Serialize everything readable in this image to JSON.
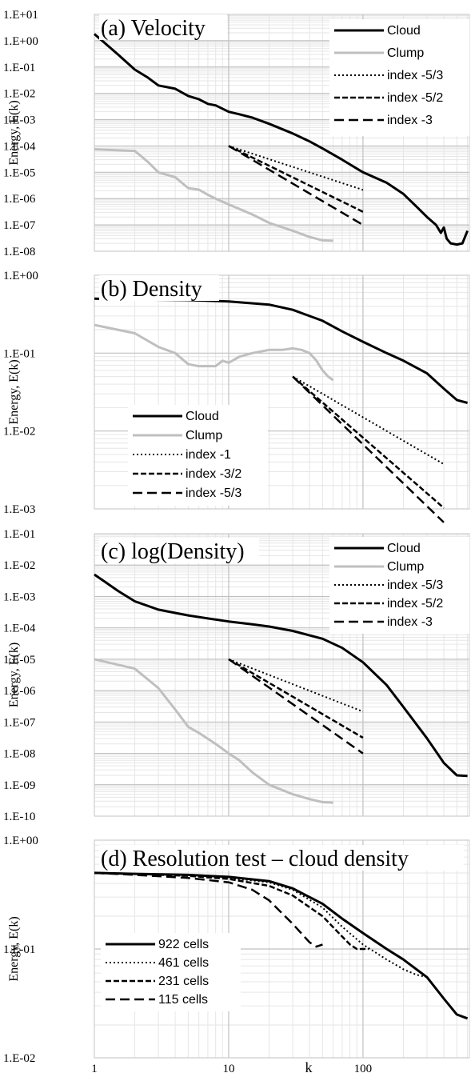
{
  "x_axis": {
    "label": "k",
    "ticks": [
      "1",
      "10",
      "100"
    ],
    "xlim": [
      1,
      620
    ],
    "scale": "log"
  },
  "colors": {
    "cloud": "#000000",
    "clump": "#bfbfbf",
    "grid_major": "#c0c0c0",
    "grid_minor": "#e6e6e6"
  },
  "chart_data": [
    {
      "type": "line",
      "title": "(a) Velocity",
      "ylabel": "Energy, E(k)",
      "yscale": "log",
      "ylim": [
        1e-08,
        10
      ],
      "yticks": [
        "1.E+01",
        "1.E+00",
        "1.E-01",
        "1.E-02",
        "1.E-03",
        "1.E-04",
        "1.E-05",
        "1.E-06",
        "1.E-07",
        "1.E-08"
      ],
      "legend_position": "top-right",
      "series": [
        {
          "name": "Cloud",
          "style": "solid-black",
          "x": [
            1,
            1.5,
            2,
            2.5,
            3,
            4,
            5,
            6,
            7,
            8,
            10,
            12,
            15,
            20,
            30,
            40,
            50,
            70,
            100,
            150,
            200,
            250,
            300,
            350,
            380,
            400,
            420,
            450,
            500,
            550,
            600
          ],
          "y": [
            1.8,
            0.3,
            0.08,
            0.04,
            0.02,
            0.015,
            0.008,
            0.006,
            0.004,
            0.0035,
            0.002,
            0.0016,
            0.0012,
            0.0007,
            0.0003,
            0.00015,
            8e-05,
            3e-05,
            1e-05,
            4e-06,
            1.5e-06,
            5e-07,
            2e-07,
            1e-07,
            5e-08,
            8e-08,
            3e-08,
            2e-08,
            1.8e-08,
            2e-08,
            6e-08
          ]
        },
        {
          "name": "Clump",
          "style": "solid-gray",
          "x": [
            1,
            2,
            2.5,
            3,
            4,
            5,
            6,
            7,
            8,
            10,
            15,
            20,
            30,
            40,
            50,
            60
          ],
          "y": [
            7.5e-05,
            6.5e-05,
            2.5e-05,
            1e-05,
            6.5e-06,
            2.5e-06,
            2.2e-06,
            1.4e-06,
            1e-06,
            6e-07,
            2.5e-07,
            1.2e-07,
            6e-08,
            3.5e-08,
            2.6e-08,
            2.5e-08
          ]
        },
        {
          "name": "index -5/3",
          "style": "dotted",
          "x": [
            10,
            100
          ],
          "y": [
            0.0001,
            2.15e-06
          ]
        },
        {
          "name": "index -5/2",
          "style": "dashed",
          "x": [
            10,
            100
          ],
          "y": [
            0.0001,
            3.16e-07
          ]
        },
        {
          "name": "index -3",
          "style": "longdash",
          "x": [
            10,
            100
          ],
          "y": [
            0.0001,
            1e-07
          ]
        }
      ]
    },
    {
      "type": "line",
      "title": "(b) Density",
      "ylabel": "Energy, E(k)",
      "yscale": "log",
      "ylim": [
        0.001,
        1
      ],
      "yticks": [
        "1.E+00",
        "1.E-01",
        "1.E-02",
        "1.E-03"
      ],
      "legend_position": "bottom-left",
      "series": [
        {
          "name": "Cloud",
          "style": "solid-black",
          "x": [
            1,
            2,
            5,
            10,
            20,
            30,
            50,
            70,
            100,
            150,
            200,
            300,
            400,
            500,
            600
          ],
          "y": [
            0.5,
            0.49,
            0.48,
            0.46,
            0.42,
            0.36,
            0.26,
            0.19,
            0.14,
            0.1,
            0.08,
            0.055,
            0.035,
            0.025,
            0.023
          ]
        },
        {
          "name": "Clump",
          "style": "solid-gray",
          "x": [
            1,
            2,
            3,
            4,
            5,
            6,
            8,
            9,
            10,
            12,
            15,
            20,
            25,
            30,
            35,
            40,
            45,
            50,
            55,
            60
          ],
          "y": [
            0.23,
            0.18,
            0.12,
            0.1,
            0.072,
            0.068,
            0.068,
            0.08,
            0.075,
            0.09,
            0.1,
            0.11,
            0.11,
            0.115,
            0.11,
            0.1,
            0.08,
            0.06,
            0.05,
            0.045
          ]
        },
        {
          "name": "index -1",
          "style": "dotted",
          "x": [
            30,
            400
          ],
          "y": [
            0.05,
            0.00375
          ]
        },
        {
          "name": "index -3/2",
          "style": "dashed",
          "x": [
            30,
            400
          ],
          "y": [
            0.05,
            0.00103
          ]
        },
        {
          "name": "index -5/3",
          "style": "longdash",
          "x": [
            30,
            400
          ],
          "y": [
            0.05,
            0.00067
          ]
        }
      ]
    },
    {
      "type": "line",
      "title": "(c) log(Density)",
      "ylabel": "Energy, E(k)",
      "yscale": "log",
      "ylim": [
        1e-10,
        0.1
      ],
      "yticks": [
        "1.E-01",
        "1.E-02",
        "1.E-03",
        "1.E-04",
        "1.E-05",
        "1.E-06",
        "1.E-07",
        "1.E-08",
        "1.E-09",
        "1.E-10"
      ],
      "legend_position": "top-right",
      "series": [
        {
          "name": "Cloud",
          "style": "solid-black",
          "x": [
            1,
            1.5,
            2,
            3,
            4,
            5,
            7,
            10,
            15,
            20,
            30,
            50,
            70,
            100,
            150,
            200,
            300,
            400,
            500,
            600
          ],
          "y": [
            0.005,
            0.0015,
            0.0007,
            0.00038,
            0.0003,
            0.00025,
            0.0002,
            0.00016,
            0.00013,
            0.00011,
            8e-05,
            4.5e-05,
            2.3e-05,
            8e-06,
            1.5e-06,
            3e-07,
            3e-08,
            5e-09,
            2e-09,
            1.9e-09
          ]
        },
        {
          "name": "Clump",
          "style": "solid-gray",
          "x": [
            1,
            2,
            3,
            4,
            5,
            6,
            8,
            10,
            12,
            15,
            20,
            30,
            40,
            50,
            60
          ],
          "y": [
            1e-05,
            5e-06,
            1.2e-06,
            2.5e-07,
            7e-08,
            4.5e-08,
            2e-08,
            1e-08,
            6e-09,
            2.5e-09,
            1e-09,
            5e-10,
            3.5e-10,
            2.8e-10,
            2.7e-10
          ]
        },
        {
          "name": "index -5/3",
          "style": "dotted",
          "x": [
            10,
            100
          ],
          "y": [
            1e-05,
            2.15e-07
          ]
        },
        {
          "name": "index -5/2",
          "style": "dashed",
          "x": [
            10,
            100
          ],
          "y": [
            1e-05,
            3.16e-08
          ]
        },
        {
          "name": "index -3",
          "style": "longdash",
          "x": [
            10,
            100
          ],
          "y": [
            1e-05,
            1e-08
          ]
        }
      ]
    },
    {
      "type": "line",
      "title": "(d) Resolution test – cloud density",
      "ylabel": "Energy, E(k)",
      "yscale": "log",
      "ylim": [
        0.01,
        1
      ],
      "yticks": [
        "1.E+00",
        "1.E-01",
        "1.E-02"
      ],
      "legend_position": "bottom-left",
      "series": [
        {
          "name": "922 cells",
          "style": "solid-black",
          "x": [
            1,
            2,
            5,
            10,
            20,
            30,
            50,
            70,
            100,
            150,
            200,
            300,
            400,
            500,
            600
          ],
          "y": [
            0.5,
            0.49,
            0.48,
            0.46,
            0.42,
            0.36,
            0.26,
            0.19,
            0.14,
            0.1,
            0.08,
            0.055,
            0.035,
            0.025,
            0.023
          ]
        },
        {
          "name": "461 cells",
          "style": "dotted",
          "x": [
            1,
            2,
            5,
            10,
            20,
            30,
            50,
            70,
            100,
            150,
            200,
            250,
            300
          ],
          "y": [
            0.5,
            0.49,
            0.47,
            0.45,
            0.41,
            0.35,
            0.24,
            0.16,
            0.11,
            0.08,
            0.065,
            0.058,
            0.055
          ]
        },
        {
          "name": "231 cells",
          "style": "dashed",
          "x": [
            1,
            2,
            5,
            10,
            20,
            30,
            50,
            70,
            80,
            90,
            100,
            110
          ],
          "y": [
            0.5,
            0.49,
            0.47,
            0.44,
            0.38,
            0.31,
            0.2,
            0.13,
            0.11,
            0.1,
            0.1,
            0.1
          ]
        },
        {
          "name": "115 cells",
          "style": "longdash",
          "x": [
            1,
            2,
            5,
            10,
            15,
            20,
            30,
            40,
            45,
            50
          ],
          "y": [
            0.5,
            0.48,
            0.45,
            0.41,
            0.35,
            0.28,
            0.17,
            0.115,
            0.105,
            0.11
          ]
        }
      ]
    }
  ]
}
